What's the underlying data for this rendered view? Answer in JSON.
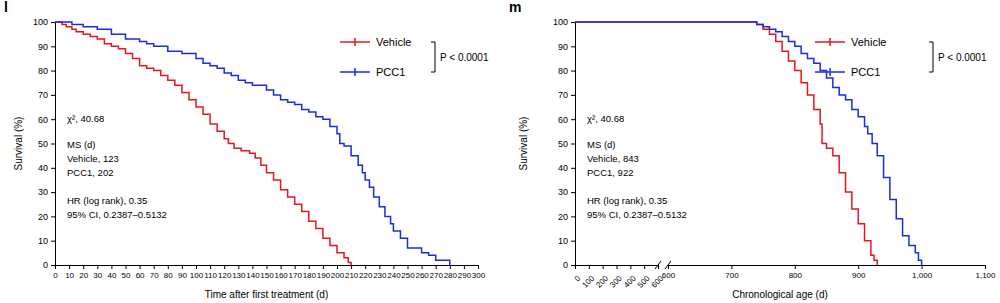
{
  "chart_data": [
    {
      "type": "step",
      "title": "l",
      "xlabel": "Time after first treatment (d)",
      "ylabel": "Survival (%)",
      "xlim": [
        0,
        300
      ],
      "xticks": [
        0,
        10,
        20,
        30,
        40,
        50,
        60,
        70,
        80,
        90,
        100,
        110,
        120,
        130,
        140,
        150,
        160,
        170,
        180,
        190,
        200,
        210,
        220,
        230,
        240,
        250,
        260,
        270,
        280,
        290,
        300
      ],
      "ylim": [
        0,
        100
      ],
      "yticks": [
        0,
        10,
        20,
        30,
        40,
        50,
        60,
        70,
        80,
        90,
        100
      ],
      "legend": "top-right",
      "annotations": [
        "P < 0.0001",
        "χ², 40.68",
        "MS (d)",
        "Vehicle, 123",
        "PCC1, 202",
        "HR (log rank), 0.35",
        "95% CI, 0.2387–0.5132"
      ],
      "series": [
        {
          "name": "Vehicle",
          "color": "#e8161c",
          "x": [
            0,
            5,
            8,
            12,
            15,
            20,
            25,
            30,
            35,
            40,
            45,
            50,
            55,
            60,
            65,
            70,
            75,
            80,
            85,
            90,
            95,
            100,
            105,
            110,
            115,
            120,
            123,
            127,
            132,
            138,
            142,
            146,
            150,
            155,
            160,
            165,
            170,
            175,
            180,
            185,
            190,
            195,
            200,
            205,
            208,
            210
          ],
          "values": [
            100,
            99,
            98,
            97,
            96,
            95,
            94,
            93,
            91,
            90,
            89,
            87,
            85,
            82,
            81,
            80,
            78,
            76,
            74,
            71,
            68,
            65,
            62,
            58,
            55,
            52,
            50,
            48,
            47,
            46,
            44,
            41,
            38,
            35,
            31,
            28,
            25,
            22,
            18,
            15,
            11,
            8,
            5,
            3,
            1,
            0
          ]
        },
        {
          "name": "PCC1",
          "color": "#1a2ce0",
          "x": [
            0,
            12,
            20,
            30,
            40,
            50,
            60,
            65,
            70,
            80,
            90,
            100,
            105,
            110,
            115,
            120,
            125,
            130,
            135,
            140,
            150,
            155,
            160,
            165,
            170,
            175,
            180,
            185,
            190,
            195,
            200,
            202,
            205,
            210,
            215,
            218,
            220,
            223,
            226,
            230,
            234,
            238,
            240,
            245,
            250,
            260,
            265,
            270,
            280
          ],
          "values": [
            100,
            99,
            98,
            97,
            95,
            93,
            92,
            91,
            90,
            88,
            87,
            85,
            83,
            82,
            81,
            79,
            78,
            76,
            75,
            74,
            72,
            70,
            68,
            67,
            66,
            64,
            63,
            61,
            60,
            57,
            54,
            50,
            49,
            45,
            41,
            38,
            35,
            32,
            28,
            24,
            20,
            17,
            14,
            11,
            7,
            5,
            4,
            2,
            0
          ]
        }
      ]
    },
    {
      "type": "step",
      "title": "m",
      "xlabel": "Chronological age (d)",
      "ylabel": "Survival (%)",
      "xlim": [
        0,
        1100
      ],
      "xticks": [
        0,
        100,
        200,
        300,
        400,
        500,
        600,
        600,
        700,
        800,
        900,
        {
          "value": 1000,
          "label": "1,000"
        },
        {
          "value": 1100,
          "label": "1,100"
        }
      ],
      "ylim": [
        0,
        100
      ],
      "yticks": [
        0,
        10,
        20,
        30,
        40,
        50,
        60,
        70,
        80,
        90,
        100
      ],
      "legend": "top-right",
      "annotations": [
        "P < 0.0001",
        "χ², 40.68",
        "MS (d)",
        "Vehicle, 843",
        "PCC1, 922",
        "HR (log rank), 0.35",
        "95% CI, 0.2387–0.5132"
      ],
      "series": [
        {
          "name": "Vehicle",
          "color": "#e8161c",
          "x": [
            0,
            740,
            750,
            760,
            770,
            780,
            790,
            800,
            810,
            820,
            830,
            840,
            843,
            850,
            860,
            870,
            880,
            890,
            900,
            910,
            920,
            925,
            930
          ],
          "values": [
            100,
            99,
            97,
            95,
            92,
            88,
            84,
            80,
            75,
            70,
            64,
            58,
            50,
            48,
            45,
            38,
            30,
            23,
            17,
            10,
            4,
            2,
            0
          ]
        },
        {
          "name": "PCC1",
          "color": "#1a2ce0",
          "x": [
            0,
            740,
            750,
            760,
            770,
            780,
            790,
            800,
            810,
            820,
            830,
            840,
            850,
            860,
            870,
            880,
            890,
            900,
            910,
            915,
            922,
            930,
            940,
            950,
            960,
            970,
            980,
            990,
            995,
            1000
          ],
          "values": [
            100,
            99,
            98,
            97,
            96,
            94,
            92,
            90,
            87,
            85,
            83,
            80,
            77,
            73,
            70,
            68,
            64,
            61,
            57,
            54,
            50,
            45,
            36,
            27,
            19,
            12,
            8,
            5,
            2,
            0
          ]
        }
      ]
    }
  ]
}
